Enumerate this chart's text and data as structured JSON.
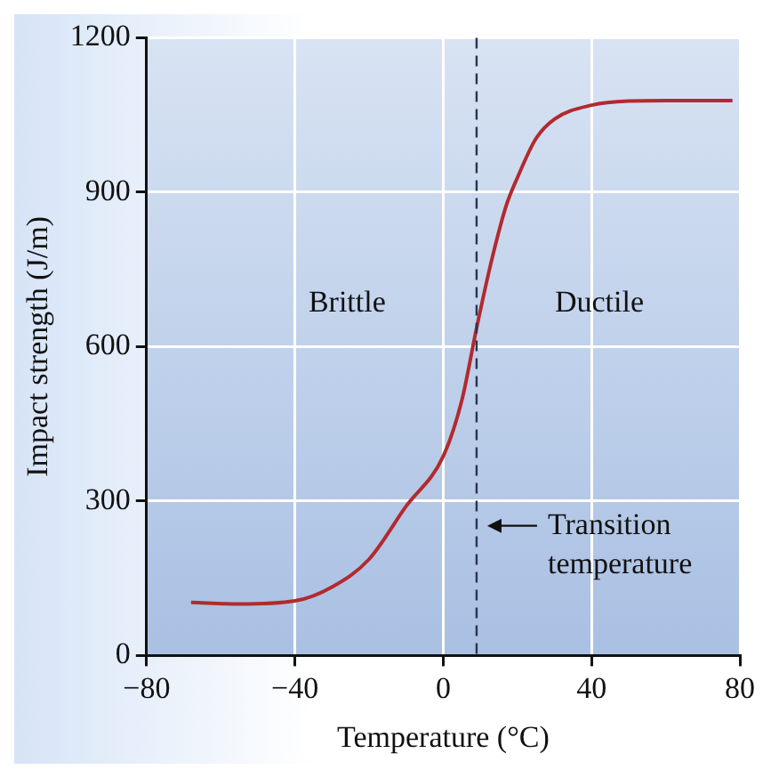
{
  "chart_data": {
    "type": "line",
    "xlabel": "Temperature (°C)",
    "ylabel": "Impact strength (J/m)",
    "x": [
      -68,
      -55,
      -40,
      -30,
      -20,
      -10,
      0,
      5,
      9,
      13,
      17,
      20,
      25,
      30,
      40,
      50,
      60,
      78
    ],
    "series": [
      {
        "color": "#b22a2e",
        "values": [
          103,
          100,
          106,
          133,
          187,
          290,
          387,
          495,
          636,
          766,
          874,
          928,
          1004,
          1042,
          1069,
          1077,
          1078,
          1078
        ]
      }
    ],
    "xlim": [
      -80,
      80
    ],
    "xticks": [
      -80,
      -40,
      0,
      40,
      80
    ],
    "ylim": [
      0,
      1200
    ],
    "yticks": [
      0,
      300,
      600,
      900,
      1200
    ],
    "grid": true,
    "legend": false,
    "marker": "none",
    "line_style": "solid",
    "ref_lines": [
      {
        "axis": "x",
        "value": 9,
        "label": "Transition temperature",
        "line_style": "dashed",
        "color": "#2a3550"
      }
    ],
    "annotations": [
      "Brittle",
      "Ductile"
    ]
  }
}
